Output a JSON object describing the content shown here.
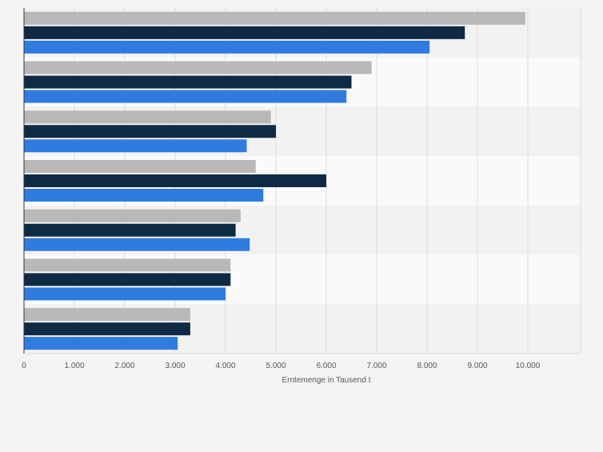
{
  "chart_data": {
    "type": "bar",
    "orientation": "horizontal",
    "categories": [
      "",
      "",
      "",
      "",
      "",
      "",
      ""
    ],
    "series": [
      {
        "values": [
          9950,
          6900,
          4900,
          4600,
          4300,
          4100,
          3300
        ]
      },
      {
        "values": [
          8750,
          6500,
          5000,
          6000,
          4200,
          4100,
          3300
        ]
      },
      {
        "values": [
          8050,
          6400,
          4420,
          4750,
          4480,
          4000,
          3050
        ]
      }
    ],
    "series_colors": [
      "#b8b8b8",
      "#0f2a45",
      "#2f7be0"
    ],
    "title": "",
    "xlabel": "Erntemenge in Tausend t",
    "ylabel": "",
    "xlim": [
      0,
      11000
    ],
    "xticks": [
      0,
      1000,
      2000,
      3000,
      4000,
      5000,
      6000,
      7000,
      8000,
      9000,
      10000
    ],
    "xtick_labels": [
      "0",
      "1.000",
      "2.000",
      "3.000",
      "4.000",
      "5.000",
      "6.000",
      "7.000",
      "8.000",
      "9.000",
      "10.000"
    ],
    "grid": true,
    "legend": "none"
  }
}
